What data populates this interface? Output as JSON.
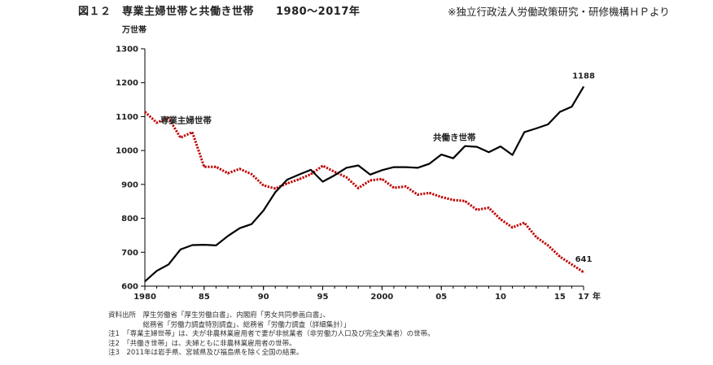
{
  "figure": {
    "title": "図１２　専業主婦世帯と共働き世帯　　1980～2017年",
    "source": "※独立行政法人労働政策研究・研修機構ＨＰより"
  },
  "chart_data": {
    "type": "line",
    "title": "図１２　専業主婦世帯と共働き世帯　　1980～2017年",
    "xlabel": "年",
    "ylabel": "万世帯",
    "xlim": [
      1980,
      2017
    ],
    "ylim": [
      600,
      1300
    ],
    "grid": false,
    "x_ticks": [
      {
        "value": 1980,
        "label": "1980"
      },
      {
        "value": 1985,
        "label": "85"
      },
      {
        "value": 1990,
        "label": "90"
      },
      {
        "value": 1995,
        "label": "95"
      },
      {
        "value": 2000,
        "label": "2000"
      },
      {
        "value": 2005,
        "label": "05"
      },
      {
        "value": 2010,
        "label": "10"
      },
      {
        "value": 2015,
        "label": "15"
      },
      {
        "value": 2017,
        "label": "17"
      }
    ],
    "y_ticks": [
      600,
      700,
      800,
      900,
      1000,
      1100,
      1200,
      1300
    ],
    "x": [
      1980,
      1981,
      1982,
      1983,
      1984,
      1985,
      1986,
      1987,
      1988,
      1989,
      1990,
      1991,
      1992,
      1993,
      1994,
      1995,
      1996,
      1997,
      1998,
      1999,
      2000,
      2001,
      2002,
      2003,
      2004,
      2005,
      2006,
      2007,
      2008,
      2009,
      2010,
      2011,
      2012,
      2013,
      2014,
      2015,
      2016,
      2017
    ],
    "series": [
      {
        "name": "専業主婦世帯",
        "color": "#c00000",
        "style": "dotted",
        "values": [
          1114,
          1082,
          1096,
          1038,
          1054,
          952,
          952,
          933,
          946,
          930,
          897,
          888,
          903,
          915,
          930,
          955,
          937,
          921,
          889,
          912,
          916,
          890,
          894,
          870,
          875,
          863,
          854,
          851,
          825,
          831,
          797,
          773,
          787,
          745,
          720,
          687,
          664,
          641
        ]
      },
      {
        "name": "共働き世帯",
        "color": "#000000",
        "style": "solid",
        "values": [
          614,
          645,
          664,
          708,
          721,
          722,
          720,
          748,
          771,
          783,
          823,
          877,
          914,
          929,
          943,
          908,
          927,
          949,
          956,
          929,
          942,
          951,
          951,
          949,
          961,
          988,
          977,
          1013,
          1011,
          995,
          1012,
          987,
          1054,
          1065,
          1077,
          1114,
          1129,
          1188
        ]
      }
    ],
    "annotations": [
      {
        "text": "専業主婦世帯",
        "series": 0
      },
      {
        "text": "共働き世帯",
        "series": 1
      },
      {
        "text": "1188",
        "series": 1,
        "end": true
      },
      {
        "text": "641",
        "series": 0,
        "end": true
      }
    ]
  },
  "notes": [
    "資料出所　厚生労働省「厚生労働白書」、内閣府「男女共同参画白書」、",
    "　　　　　総務省「労働力調査特別調査」、総務省「労働力調査（詳細集計）」",
    "注1　「専業主婦世帯」は、夫が非農林業雇用者で妻が非就業者（非労働力人口及び完全失業者）の世帯。",
    "注2　「共働き世帯」は、夫婦ともに非農林業雇用者の世帯。",
    "注3　2011年は岩手県、宮城県及び福島県を除く全国の結果。"
  ]
}
